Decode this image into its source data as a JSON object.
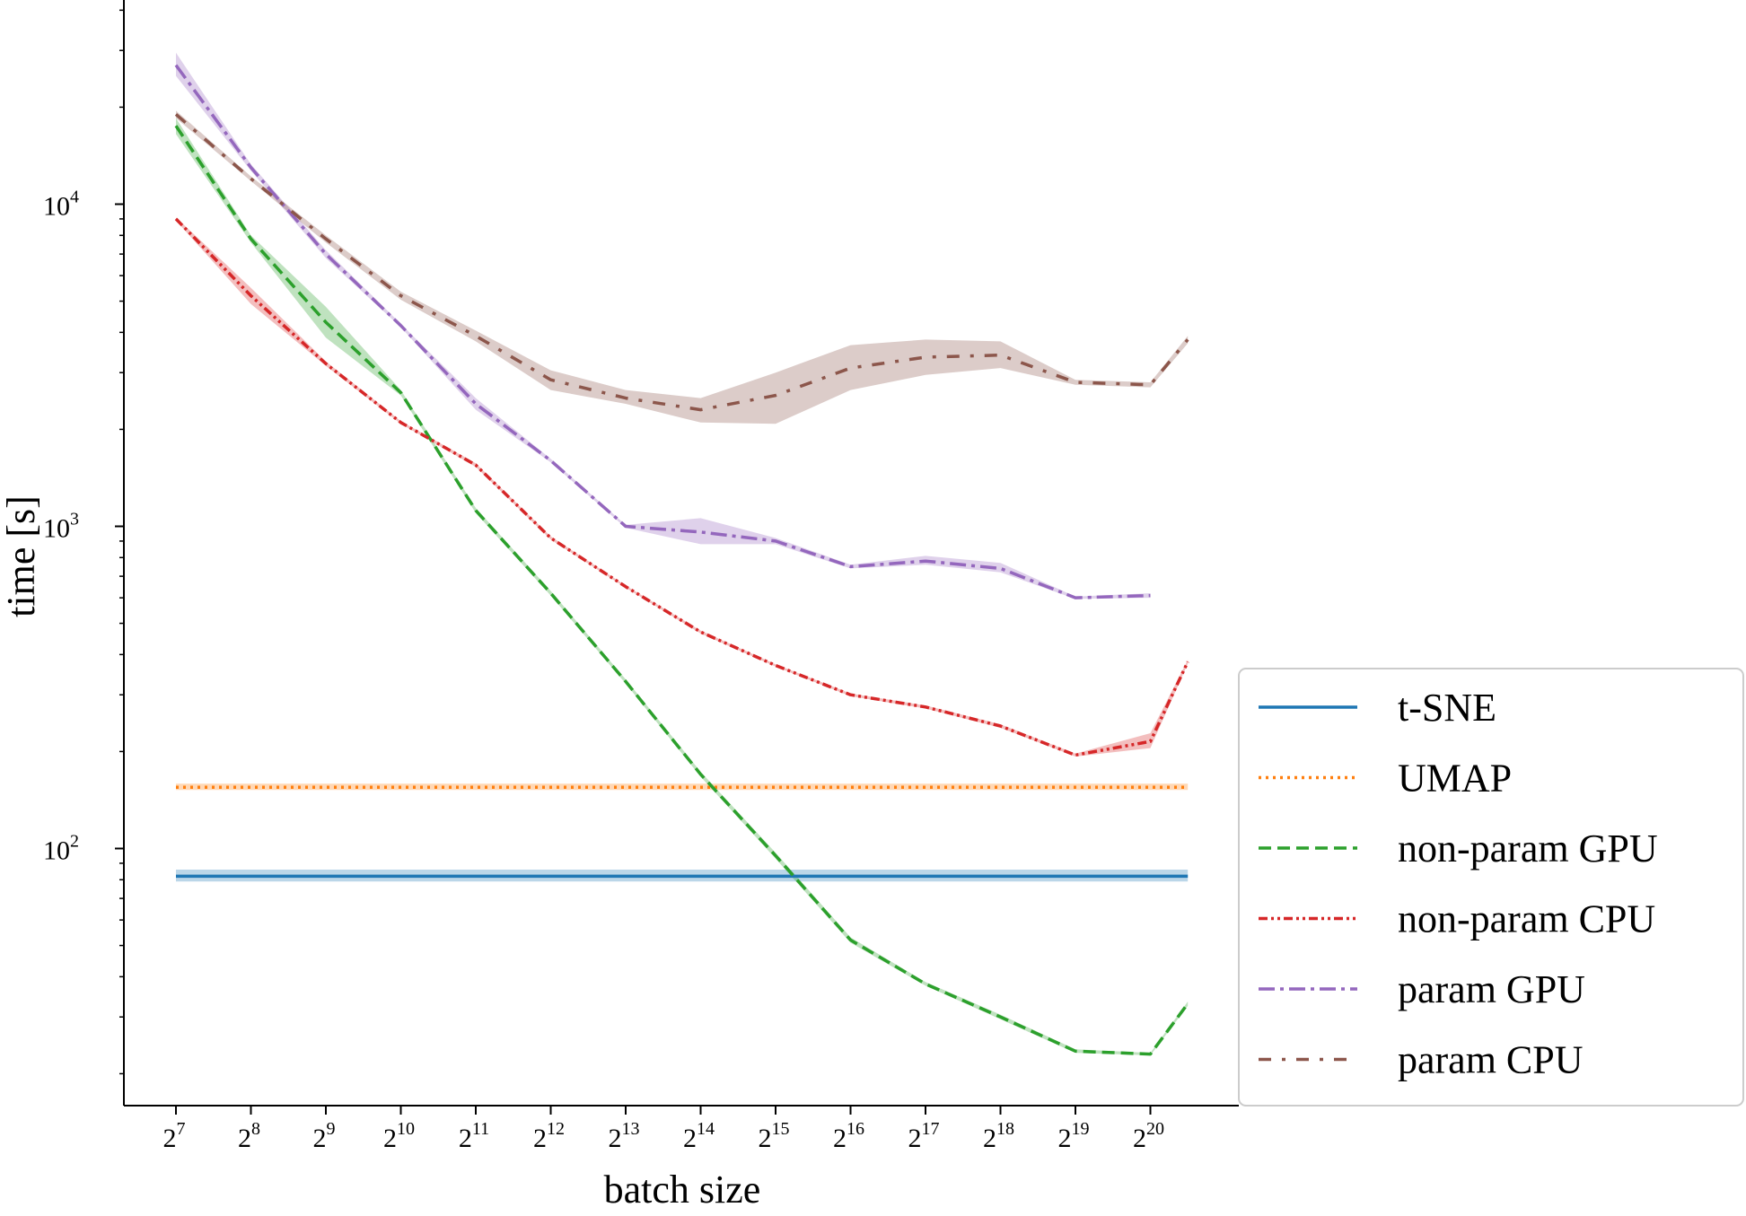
{
  "chart_data": {
    "type": "line",
    "xlabel": "batch size",
    "ylabel": "time [s]",
    "xscale": "log2",
    "yscale": "log10",
    "xlim": [
      100,
      1900000
    ],
    "ylim": [
      16,
      50000
    ],
    "x_tick_labels": [
      {
        "base": "2",
        "exp": "7"
      },
      {
        "base": "2",
        "exp": "8"
      },
      {
        "base": "2",
        "exp": "9"
      },
      {
        "base": "2",
        "exp": "10"
      },
      {
        "base": "2",
        "exp": "11"
      },
      {
        "base": "2",
        "exp": "12"
      },
      {
        "base": "2",
        "exp": "13"
      },
      {
        "base": "2",
        "exp": "14"
      },
      {
        "base": "2",
        "exp": "15"
      },
      {
        "base": "2",
        "exp": "16"
      },
      {
        "base": "2",
        "exp": "17"
      },
      {
        "base": "2",
        "exp": "18"
      },
      {
        "base": "2",
        "exp": "19"
      },
      {
        "base": "2",
        "exp": "20"
      }
    ],
    "y_tick_labels": [
      {
        "base": "10",
        "exp": "2"
      },
      {
        "base": "10",
        "exp": "3"
      },
      {
        "base": "10",
        "exp": "4"
      }
    ],
    "legend_position": "lower right",
    "series": [
      {
        "name": "t-SNE",
        "color": "#1f77b4",
        "dash": "solid",
        "x": [
          128,
          1482910
        ],
        "y": [
          82,
          82
        ],
        "band_low": [
          79,
          79
        ],
        "band_high": [
          86,
          86
        ]
      },
      {
        "name": "UMAP",
        "color": "#ff7f0e",
        "dash": "dotted",
        "x": [
          128,
          1482910
        ],
        "y": [
          155,
          155
        ],
        "band_low": [
          152,
          152
        ],
        "band_high": [
          159,
          159
        ]
      },
      {
        "name": "non-param GPU",
        "color": "#2ca02c",
        "dash": "dashed",
        "x": [
          128,
          256,
          512,
          1024,
          2048,
          4096,
          8192,
          16384,
          32768,
          65536,
          131072,
          262144,
          524288,
          1048576,
          1482910
        ],
        "y": [
          17500,
          7800,
          4300,
          2600,
          1120,
          620,
          330,
          170,
          95,
          52,
          38,
          30,
          23.5,
          23,
          33
        ],
        "band_low": [
          16500,
          7600,
          3850,
          2550,
          1100,
          610,
          325,
          167,
          93,
          51,
          37.5,
          29.5,
          23.2,
          22.8,
          32.5
        ],
        "band_high": [
          18500,
          8000,
          4800,
          2650,
          1140,
          630,
          335,
          173,
          97,
          53,
          38.5,
          30.5,
          23.8,
          23.2,
          33.5
        ]
      },
      {
        "name": "non-param CPU",
        "color": "#d62728",
        "dash": "dashdotdot",
        "x": [
          128,
          256,
          512,
          1024,
          2048,
          4096,
          8192,
          16384,
          32768,
          65536,
          131072,
          262144,
          524288,
          1048576,
          1482910
        ],
        "y": [
          9000,
          5200,
          3200,
          2100,
          1550,
          920,
          650,
          470,
          370,
          300,
          275,
          240,
          195,
          215,
          380
        ],
        "band_low": [
          8900,
          4900,
          3150,
          2080,
          1530,
          910,
          645,
          465,
          367,
          297,
          272,
          237,
          193,
          205,
          375
        ],
        "band_high": [
          9100,
          5500,
          3250,
          2120,
          1570,
          930,
          655,
          475,
          373,
          303,
          278,
          243,
          197,
          228,
          385
        ]
      },
      {
        "name": "param GPU",
        "color": "#9467bd",
        "dash": "dashdot",
        "x": [
          128,
          256,
          512,
          1024,
          2048,
          4096,
          8192,
          16384,
          32768,
          65536,
          131072,
          262144,
          524288,
          1048576
        ],
        "y": [
          27000,
          13000,
          7000,
          4200,
          2400,
          1600,
          1000,
          960,
          900,
          750,
          780,
          740,
          600,
          610
        ],
        "band_low": [
          25000,
          12700,
          6800,
          4150,
          2300,
          1580,
          990,
          880,
          880,
          740,
          760,
          720,
          595,
          600
        ],
        "band_high": [
          29500,
          13300,
          7200,
          4250,
          2500,
          1620,
          1010,
          1060,
          920,
          760,
          810,
          770,
          605,
          620
        ]
      },
      {
        "name": "param CPU",
        "color": "#8c564b",
        "dash": "longdashdot",
        "x": [
          128,
          256,
          512,
          1024,
          2048,
          4096,
          8192,
          16384,
          32768,
          65536,
          131072,
          262144,
          524288,
          1048576,
          1482910
        ],
        "y": [
          19000,
          12000,
          7800,
          5200,
          3900,
          2850,
          2500,
          2300,
          2550,
          3100,
          3350,
          3400,
          2800,
          2750,
          3800
        ],
        "band_low": [
          18500,
          11800,
          7600,
          5050,
          3750,
          2650,
          2400,
          2100,
          2080,
          2650,
          2950,
          3100,
          2750,
          2700,
          3700
        ],
        "band_high": [
          19500,
          12200,
          8000,
          5350,
          4050,
          3050,
          2650,
          2500,
          3000,
          3650,
          3800,
          3750,
          2850,
          2800,
          3900
        ]
      }
    ]
  }
}
